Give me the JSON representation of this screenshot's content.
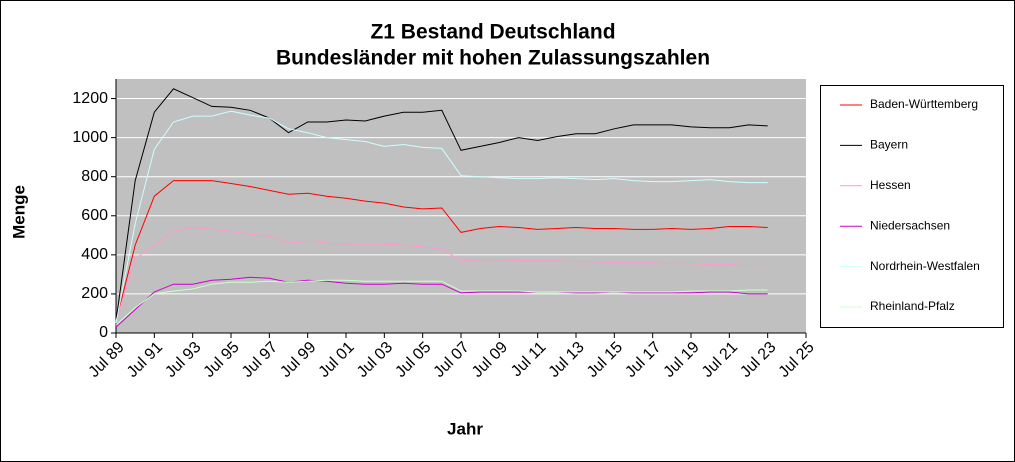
{
  "chart_data": {
    "type": "line",
    "title": "Z1 Bestand Deutschland",
    "subtitle": "Bundesländer mit hohen Zulassungszahlen",
    "x_label": "Jahr",
    "y_label": "Menge",
    "categories": [
      "Jul 89",
      null,
      "Jul 91",
      null,
      "Jul 93",
      null,
      "Jul 95",
      null,
      "Jul 97",
      null,
      "Jul 99",
      null,
      "Jul 01",
      null,
      "Jul 03",
      null,
      "Jul 05",
      null,
      "Jul 07",
      null,
      "Jul 09",
      null,
      "Jul 11",
      null,
      "Jul 13",
      null,
      "Jul 15",
      null,
      "Jul 17",
      null,
      "Jul 19",
      null,
      "Jul 21",
      null,
      "Jul 23",
      null,
      "Jul 25"
    ],
    "ylim": [
      0,
      1300
    ],
    "yticks": [
      0,
      200,
      400,
      600,
      800,
      1000,
      1200
    ],
    "grid": true,
    "legend": "right",
    "series": [
      {
        "name": "Baden-Württemberg",
        "color": "#ff0000",
        "values": [
          60,
          450,
          700,
          780,
          780,
          780,
          765,
          750,
          730,
          710,
          715,
          700,
          690,
          675,
          665,
          645,
          635,
          640,
          515,
          535,
          545,
          540,
          530,
          535,
          540,
          535,
          535,
          530,
          530,
          535,
          530,
          535,
          545,
          545,
          540,
          null,
          null
        ]
      },
      {
        "name": "Bayern",
        "color": "#000000",
        "values": [
          60,
          780,
          1130,
          1250,
          1205,
          1160,
          1155,
          1140,
          1100,
          1025,
          1080,
          1080,
          1090,
          1085,
          1110,
          1130,
          1130,
          1140,
          935,
          955,
          975,
          1000,
          985,
          1005,
          1020,
          1020,
          1045,
          1065,
          1065,
          1065,
          1055,
          1050,
          1050,
          1065,
          1060,
          null,
          null
        ]
      },
      {
        "name": "Hessen",
        "color": "#ff99cc",
        "values": [
          60,
          380,
          450,
          520,
          540,
          530,
          520,
          505,
          495,
          460,
          470,
          460,
          455,
          455,
          455,
          450,
          440,
          430,
          370,
          375,
          375,
          370,
          370,
          370,
          365,
          365,
          360,
          360,
          360,
          355,
          355,
          350,
          350,
          345,
          345,
          null,
          null
        ]
      },
      {
        "name": "Niedersachsen",
        "color": "#cc00cc",
        "values": [
          30,
          120,
          210,
          250,
          250,
          270,
          275,
          285,
          280,
          260,
          270,
          265,
          255,
          250,
          250,
          255,
          250,
          250,
          205,
          210,
          210,
          210,
          210,
          210,
          205,
          205,
          210,
          205,
          205,
          205,
          205,
          210,
          210,
          200,
          200,
          null,
          null
        ]
      },
      {
        "name": "Nordrhein-Westfalen",
        "color": "#ccffff",
        "values": [
          50,
          560,
          940,
          1080,
          1110,
          1110,
          1135,
          1115,
          1100,
          1045,
          1025,
          1000,
          990,
          980,
          955,
          965,
          950,
          945,
          805,
          800,
          795,
          790,
          790,
          795,
          790,
          785,
          790,
          780,
          775,
          775,
          780,
          785,
          775,
          770,
          770,
          null,
          null
        ]
      },
      {
        "name": "Rheinland-Pfalz",
        "color": "#ccffcc",
        "values": [
          40,
          130,
          200,
          215,
          225,
          250,
          260,
          260,
          265,
          260,
          265,
          270,
          270,
          265,
          265,
          265,
          265,
          265,
          215,
          215,
          215,
          215,
          210,
          210,
          210,
          210,
          210,
          210,
          210,
          210,
          215,
          215,
          215,
          220,
          220,
          null,
          null
        ]
      }
    ]
  }
}
